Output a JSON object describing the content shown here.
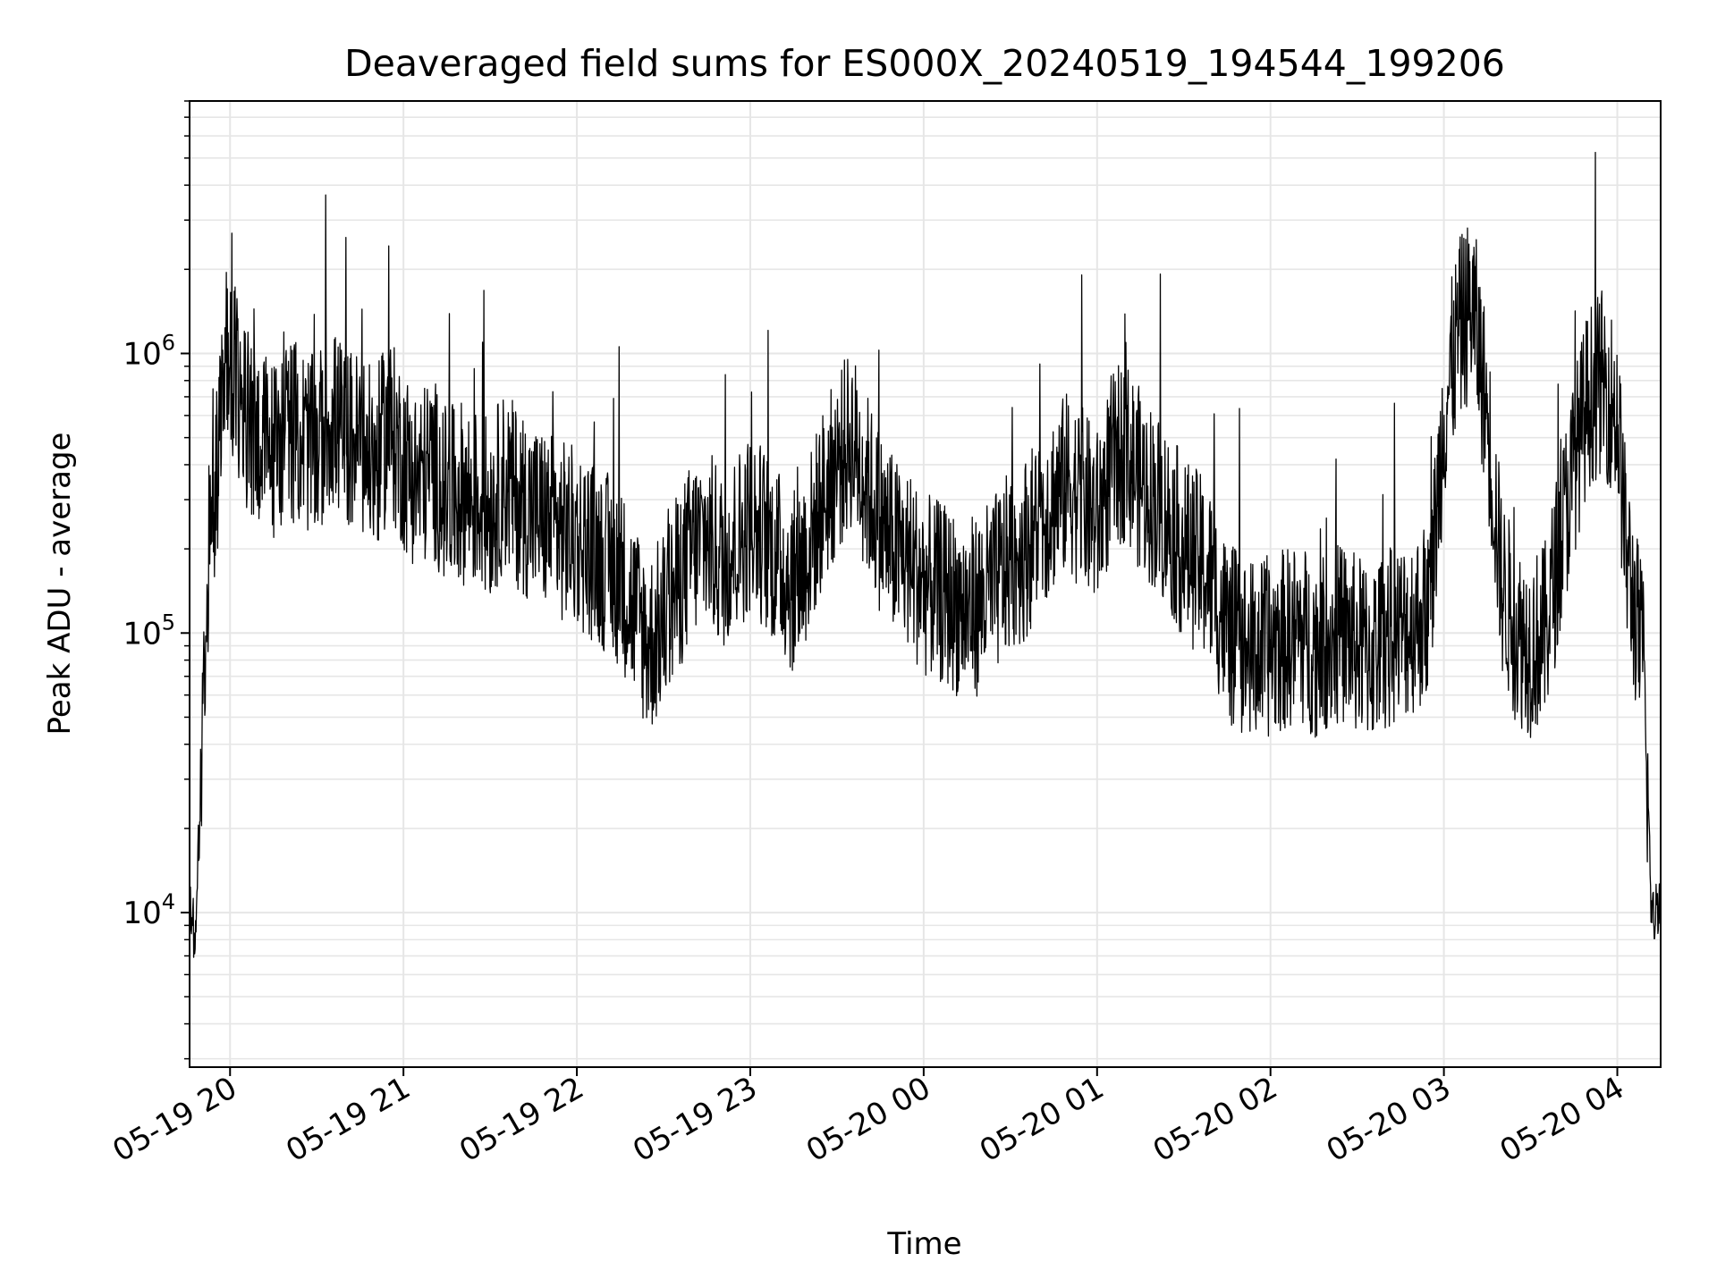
{
  "chart_data": {
    "type": "line",
    "title": "Deaveraged field sums for ES000X_20240519_194544_199206",
    "xlabel": "Time",
    "ylabel": "Peak ADU - average",
    "yscale": "log",
    "grid": true,
    "grid_minor": true,
    "line_color": "#000000",
    "grid_color": "#e6e6e6",
    "xlim": [
      "2024-05-19 19:46",
      "2024-05-20 04:15"
    ],
    "ylim": [
      2800,
      8000000
    ],
    "x_ticks": [
      "05-19 20",
      "05-19 21",
      "05-19 22",
      "05-19 23",
      "05-20 00",
      "05-20 01",
      "05-20 02",
      "05-20 03",
      "05-20 04"
    ],
    "y_ticks": [
      {
        "base": "10",
        "exp": "4",
        "value": 10000
      },
      {
        "base": "10",
        "exp": "5",
        "value": 100000
      },
      {
        "base": "10",
        "exp": "6",
        "value": 1000000
      }
    ],
    "series": [
      {
        "x": [
          "2024-05-19 19:46",
          "2024-05-19 19:48",
          "2024-05-19 19:50",
          "2024-05-19 19:52",
          "2024-05-19 19:54",
          "2024-05-19 19:56",
          "2024-05-19 19:58",
          "2024-05-19 20:00",
          "2024-05-19 20:05",
          "2024-05-19 20:10",
          "2024-05-19 20:15",
          "2024-05-19 20:20",
          "2024-05-19 20:25",
          "2024-05-19 20:30",
          "2024-05-19 20:35",
          "2024-05-19 20:40",
          "2024-05-19 20:45",
          "2024-05-19 20:50",
          "2024-05-19 20:55",
          "2024-05-19 21:00",
          "2024-05-19 21:05",
          "2024-05-19 21:10",
          "2024-05-19 21:15",
          "2024-05-19 21:20",
          "2024-05-19 21:25",
          "2024-05-19 21:30",
          "2024-05-19 21:35",
          "2024-05-19 21:40",
          "2024-05-19 21:45",
          "2024-05-19 21:50",
          "2024-05-19 21:55",
          "2024-05-19 22:00",
          "2024-05-19 22:05",
          "2024-05-19 22:10",
          "2024-05-19 22:15",
          "2024-05-19 22:20",
          "2024-05-19 22:25",
          "2024-05-19 22:30",
          "2024-05-19 22:35",
          "2024-05-19 22:40",
          "2024-05-19 22:45",
          "2024-05-19 22:50",
          "2024-05-19 22:55",
          "2024-05-19 23:00",
          "2024-05-19 23:05",
          "2024-05-19 23:10",
          "2024-05-19 23:15",
          "2024-05-19 23:20",
          "2024-05-19 23:25",
          "2024-05-19 23:30",
          "2024-05-19 23:35",
          "2024-05-19 23:40",
          "2024-05-19 23:45",
          "2024-05-19 23:50",
          "2024-05-19 23:55",
          "2024-05-20 00:00",
          "2024-05-20 00:05",
          "2024-05-20 00:10",
          "2024-05-20 00:15",
          "2024-05-20 00:20",
          "2024-05-20 00:25",
          "2024-05-20 00:30",
          "2024-05-20 00:35",
          "2024-05-20 00:40",
          "2024-05-20 00:45",
          "2024-05-20 00:50",
          "2024-05-20 00:55",
          "2024-05-20 01:00",
          "2024-05-20 01:05",
          "2024-05-20 01:10",
          "2024-05-20 01:15",
          "2024-05-20 01:20",
          "2024-05-20 01:25",
          "2024-05-20 01:30",
          "2024-05-20 01:35",
          "2024-05-20 01:40",
          "2024-05-20 01:45",
          "2024-05-20 01:50",
          "2024-05-20 01:55",
          "2024-05-20 02:00",
          "2024-05-20 02:05",
          "2024-05-20 02:10",
          "2024-05-20 02:15",
          "2024-05-20 02:20",
          "2024-05-20 02:25",
          "2024-05-20 02:30",
          "2024-05-20 02:35",
          "2024-05-20 02:40",
          "2024-05-20 02:45",
          "2024-05-20 02:50",
          "2024-05-20 02:55",
          "2024-05-20 03:00",
          "2024-05-20 03:05",
          "2024-05-20 03:10",
          "2024-05-20 03:15",
          "2024-05-20 03:20",
          "2024-05-20 03:25",
          "2024-05-20 03:30",
          "2024-05-20 03:35",
          "2024-05-20 03:40",
          "2024-05-20 03:45",
          "2024-05-20 03:50",
          "2024-05-20 03:55",
          "2024-05-20 04:00",
          "2024-05-20 04:03",
          "2024-05-20 04:06",
          "2024-05-20 04:09",
          "2024-05-20 04:12",
          "2024-05-20 04:15"
        ],
        "y": [
          12000,
          8000,
          30000,
          150000,
          300000,
          450000,
          900000,
          1000000,
          600000,
          500000,
          450000,
          550000,
          500000,
          450000,
          600000,
          500000,
          480000,
          400000,
          550000,
          420000,
          350000,
          400000,
          300000,
          320000,
          300000,
          280000,
          350000,
          300000,
          270000,
          250000,
          230000,
          220000,
          200000,
          180000,
          160000,
          120000,
          90000,
          110000,
          150000,
          200000,
          220000,
          180000,
          210000,
          250000,
          220000,
          180000,
          150000,
          200000,
          300000,
          400000,
          500000,
          350000,
          250000,
          200000,
          180000,
          150000,
          140000,
          130000,
          120000,
          130000,
          150000,
          180000,
          200000,
          250000,
          300000,
          350000,
          300000,
          250000,
          400000,
          450000,
          350000,
          300000,
          250000,
          200000,
          180000,
          150000,
          100000,
          90000,
          85000,
          90000,
          95000,
          100000,
          90000,
          95000,
          100000,
          90000,
          85000,
          95000,
          100000,
          110000,
          120000,
          600000,
          1200000,
          1500000,
          600000,
          150000,
          100000,
          90000,
          100000,
          200000,
          400000,
          700000,
          800000,
          600000,
          200000,
          120000,
          80000,
          9000,
          12000
        ]
      }
    ]
  }
}
